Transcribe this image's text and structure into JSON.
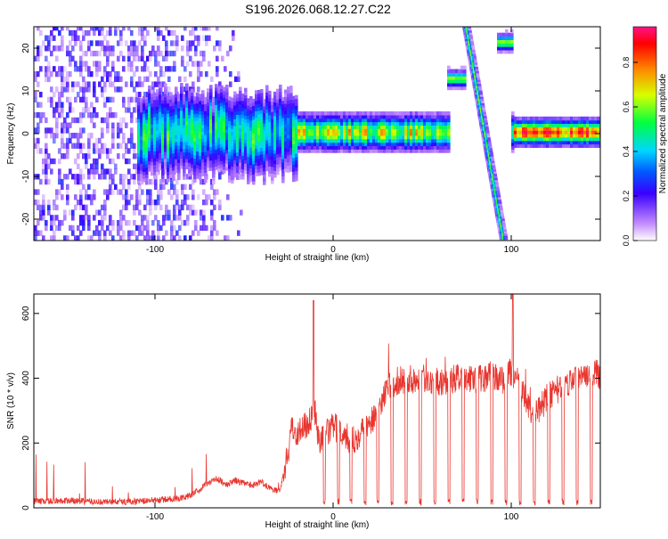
{
  "chart_data": [
    {
      "type": "heatmap",
      "title": "S196.2026.068.12.27.C22",
      "xlabel": "Height of straight line (km)",
      "ylabel": "Frequency (Hz)",
      "xlim": [
        -168,
        150
      ],
      "ylim": [
        -25,
        25
      ],
      "xticks": [
        -100,
        0,
        100
      ],
      "yticks": [
        -20,
        -10,
        0,
        10,
        20
      ],
      "colorbar": {
        "label": "Normalized spectral amplitude",
        "range": [
          0,
          0.96
        ],
        "ticks": [
          0.0,
          0.2,
          0.4,
          0.6,
          0.8
        ]
      },
      "features": {
        "noise_region_x": [
          -168,
          -80
        ],
        "line_center_hz": 0,
        "gap_x": [
          64,
          100
        ],
        "band_12hz_x": [
          64,
          74
        ],
        "band_20hz_x": [
          92,
          100
        ],
        "diagonal_track": {
          "x_start": 74,
          "hz_start": 25,
          "x_end": 95,
          "hz_end": -25
        }
      }
    },
    {
      "type": "line",
      "xlabel": "Height of straight line (km)",
      "ylabel": "SNR (10 * v/v)",
      "xlim": [
        -168,
        150
      ],
      "ylim": [
        0,
        660
      ],
      "xticks": [
        -100,
        0,
        100
      ],
      "yticks": [
        0,
        200,
        400,
        600
      ],
      "color": "#e8352e",
      "series": [
        {
          "name": "SNR",
          "x": [
            -168,
            -150,
            -130,
            -110,
            -95,
            -85,
            -80,
            -75,
            -70,
            -65,
            -60,
            -55,
            -50,
            -45,
            -40,
            -35,
            -30,
            -25,
            -23,
            -20,
            -15,
            -12,
            -10,
            -8,
            -5,
            0,
            5,
            10,
            15,
            20,
            25,
            30,
            35,
            40,
            50,
            60,
            70,
            80,
            90,
            95,
            100,
            105,
            110,
            112,
            115,
            120,
            125,
            130,
            140,
            150
          ],
          "y": [
            20,
            22,
            18,
            20,
            25,
            30,
            40,
            55,
            80,
            90,
            70,
            85,
            75,
            70,
            80,
            60,
            50,
            180,
            250,
            230,
            260,
            280,
            300,
            200,
            220,
            250,
            240,
            200,
            230,
            260,
            300,
            370,
            390,
            395,
            400,
            390,
            400,
            395,
            410,
            390,
            420,
            380,
            300,
            260,
            300,
            340,
            360,
            380,
            420,
            410
          ]
        }
      ],
      "dropouts_x": [
        -5,
        3,
        10,
        18,
        25,
        33,
        41,
        49,
        57,
        65,
        73,
        81,
        89,
        97,
        105,
        113,
        121,
        129,
        137,
        145
      ],
      "peaks": [
        {
          "x": -11,
          "y": 640
        },
        {
          "x": 101,
          "y": 660
        }
      ]
    }
  ]
}
